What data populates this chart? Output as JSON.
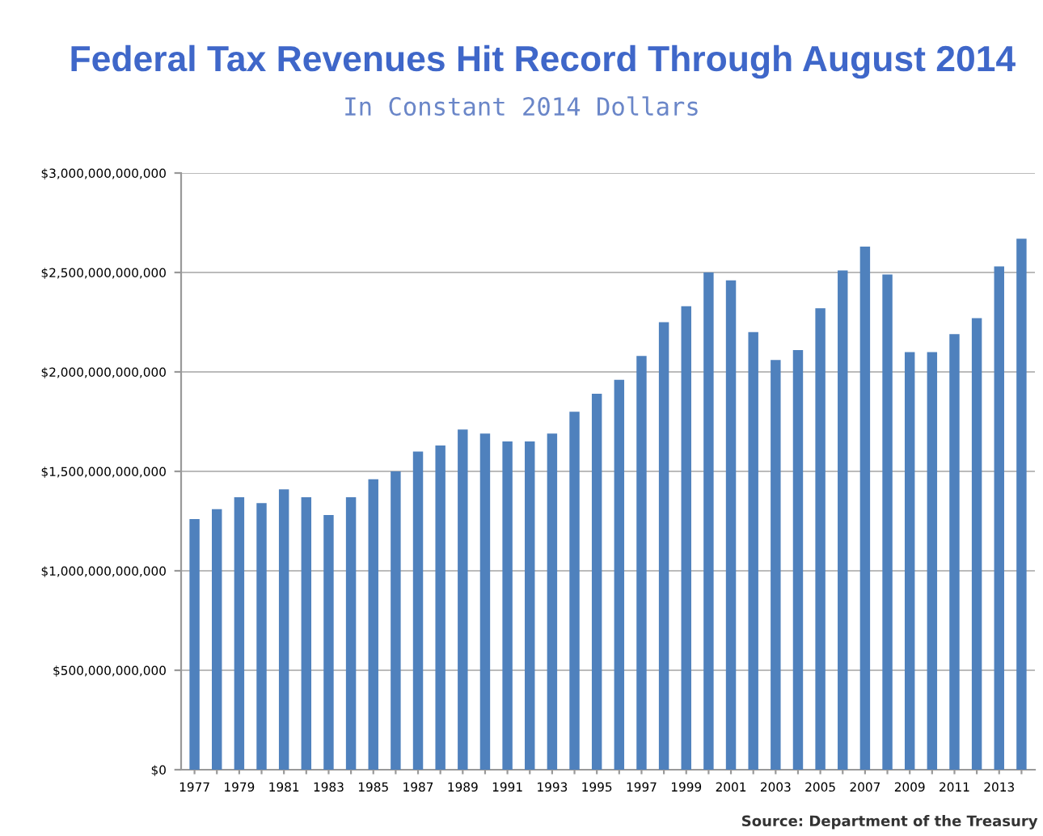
{
  "chart_data": {
    "type": "bar",
    "title": "Federal Tax Revenues Hit Record Through August 2014",
    "subtitle": "In Constant 2014 Dollars",
    "categories": [
      "1977",
      null,
      "1979",
      null,
      "1981",
      null,
      "1983",
      null,
      "1985",
      null,
      "1987",
      null,
      "1989",
      null,
      "1991",
      null,
      "1993",
      null,
      "1995",
      null,
      "1997",
      null,
      "1999",
      null,
      "2001",
      null,
      "2003",
      null,
      "2005",
      null,
      "2007",
      null,
      "2009",
      null,
      "2011",
      null,
      "2013",
      null
    ],
    "values": [
      1260000000000,
      1310000000000,
      1370000000000,
      1340000000000,
      1410000000000,
      1370000000000,
      1280000000000,
      1370000000000,
      1460000000000,
      1500000000000,
      1600000000000,
      1630000000000,
      1710000000000,
      1690000000000,
      1650000000000,
      1650000000000,
      1690000000000,
      1800000000000,
      1890000000000,
      1960000000000,
      2080000000000,
      2250000000000,
      2330000000000,
      2500000000000,
      2460000000000,
      2200000000000,
      2060000000000,
      2110000000000,
      2320000000000,
      2510000000000,
      2630000000000,
      2490000000000,
      2100000000000,
      2100000000000,
      2190000000000,
      2270000000000,
      2530000000000,
      2670000000000
    ],
    "color": "#4f81bd",
    "ylim": [
      0,
      3000000000000
    ],
    "yticks": [
      {
        "value": 0,
        "label": "$0"
      },
      {
        "value": 500000000000,
        "label": "$500,000,000,000"
      },
      {
        "value": 1000000000000,
        "label": "$1,000,000,000,000"
      },
      {
        "value": 1500000000000,
        "label": "$1,500,000,000,000"
      },
      {
        "value": 2000000000000,
        "label": "$2,000,000,000,000"
      },
      {
        "value": 2500000000000,
        "label": "$2,500,000,000,000"
      },
      {
        "value": 3000000000000,
        "label": "$3,000,000,000,000"
      }
    ],
    "grid": "y",
    "annotations": [
      "Source: Department of the Treasury"
    ]
  }
}
